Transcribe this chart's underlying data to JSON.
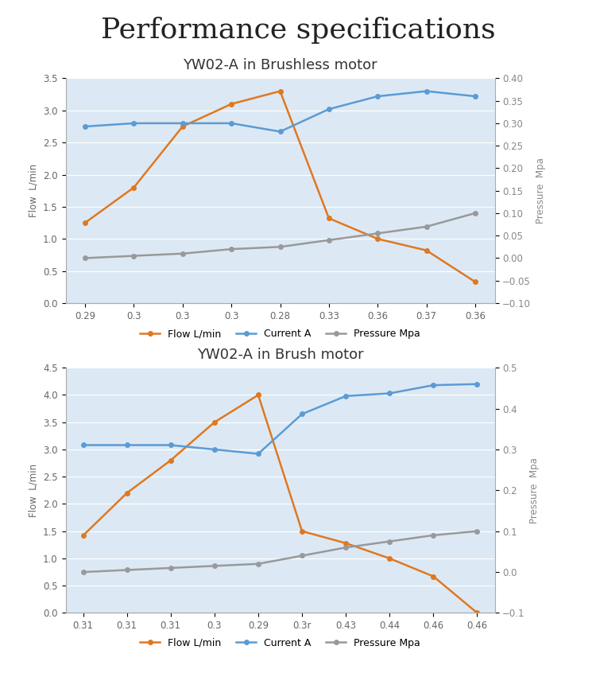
{
  "title": "Performance specifications",
  "title_fontsize": 26,
  "chart1_title": "YW02-A in Brushless motor",
  "chart2_title": "YW02-A in Brush motor",
  "chart_title_fontsize": 13,
  "chart1": {
    "x_labels": [
      "0.29",
      "0.3",
      "0.3",
      "0.3",
      "0.28",
      "0.33",
      "0.36",
      "0.37",
      "0.36"
    ],
    "flow": [
      1.25,
      1.8,
      2.75,
      3.1,
      3.3,
      1.32,
      1.0,
      0.82,
      0.33
    ],
    "current": [
      2.75,
      2.8,
      2.8,
      2.8,
      2.67,
      3.02,
      3.22,
      3.3,
      3.22
    ],
    "pressure_mpa": [
      0.0,
      0.005,
      0.01,
      0.02,
      0.025,
      0.04,
      0.055,
      0.07,
      0.1
    ],
    "ylim_left": [
      0,
      3.5
    ],
    "ylim_right": [
      -0.1,
      0.4
    ],
    "yticks_left": [
      0,
      0.5,
      1.0,
      1.5,
      2.0,
      2.5,
      3.0,
      3.5
    ],
    "yticks_right": [
      -0.1,
      -0.05,
      0,
      0.05,
      0.1,
      0.15,
      0.2,
      0.25,
      0.3,
      0.35,
      0.4
    ]
  },
  "chart2": {
    "x_labels": [
      "0.31",
      "0.31",
      "0.31",
      "0.3",
      "0.29",
      "0.3r",
      "0.43",
      "0.44",
      "0.46",
      "0.46"
    ],
    "flow": [
      1.42,
      2.2,
      2.8,
      3.5,
      4.0,
      1.5,
      1.28,
      1.0,
      0.67,
      0.0
    ],
    "current": [
      3.08,
      3.08,
      3.08,
      3.0,
      2.92,
      3.65,
      3.98,
      4.03,
      4.18,
      4.2
    ],
    "pressure_mpa": [
      0.0,
      0.005,
      0.01,
      0.015,
      0.02,
      0.04,
      0.06,
      0.075,
      0.09,
      0.1
    ],
    "ylim_left": [
      0,
      4.5
    ],
    "ylim_right": [
      -0.1,
      0.5
    ],
    "yticks_left": [
      0,
      0.5,
      1.0,
      1.5,
      2.0,
      2.5,
      3.0,
      3.5,
      4.0,
      4.5
    ],
    "yticks_right": [
      -0.1,
      0,
      0.1,
      0.2,
      0.3,
      0.4,
      0.5
    ]
  },
  "flow_color": "#e07820",
  "current_color": "#5b9bd5",
  "pressure_color": "#999999",
  "bg_color": "#dce9f5",
  "fig_bg": "#ffffff",
  "legend_labels": [
    "Flow L/min",
    "Current A",
    "Pressure Mpa"
  ],
  "ylabel_left": "Flow  L/min",
  "ylabel_right": "Pressure  Mpa",
  "marker": "o",
  "marker_size": 4,
  "line_width": 1.8
}
